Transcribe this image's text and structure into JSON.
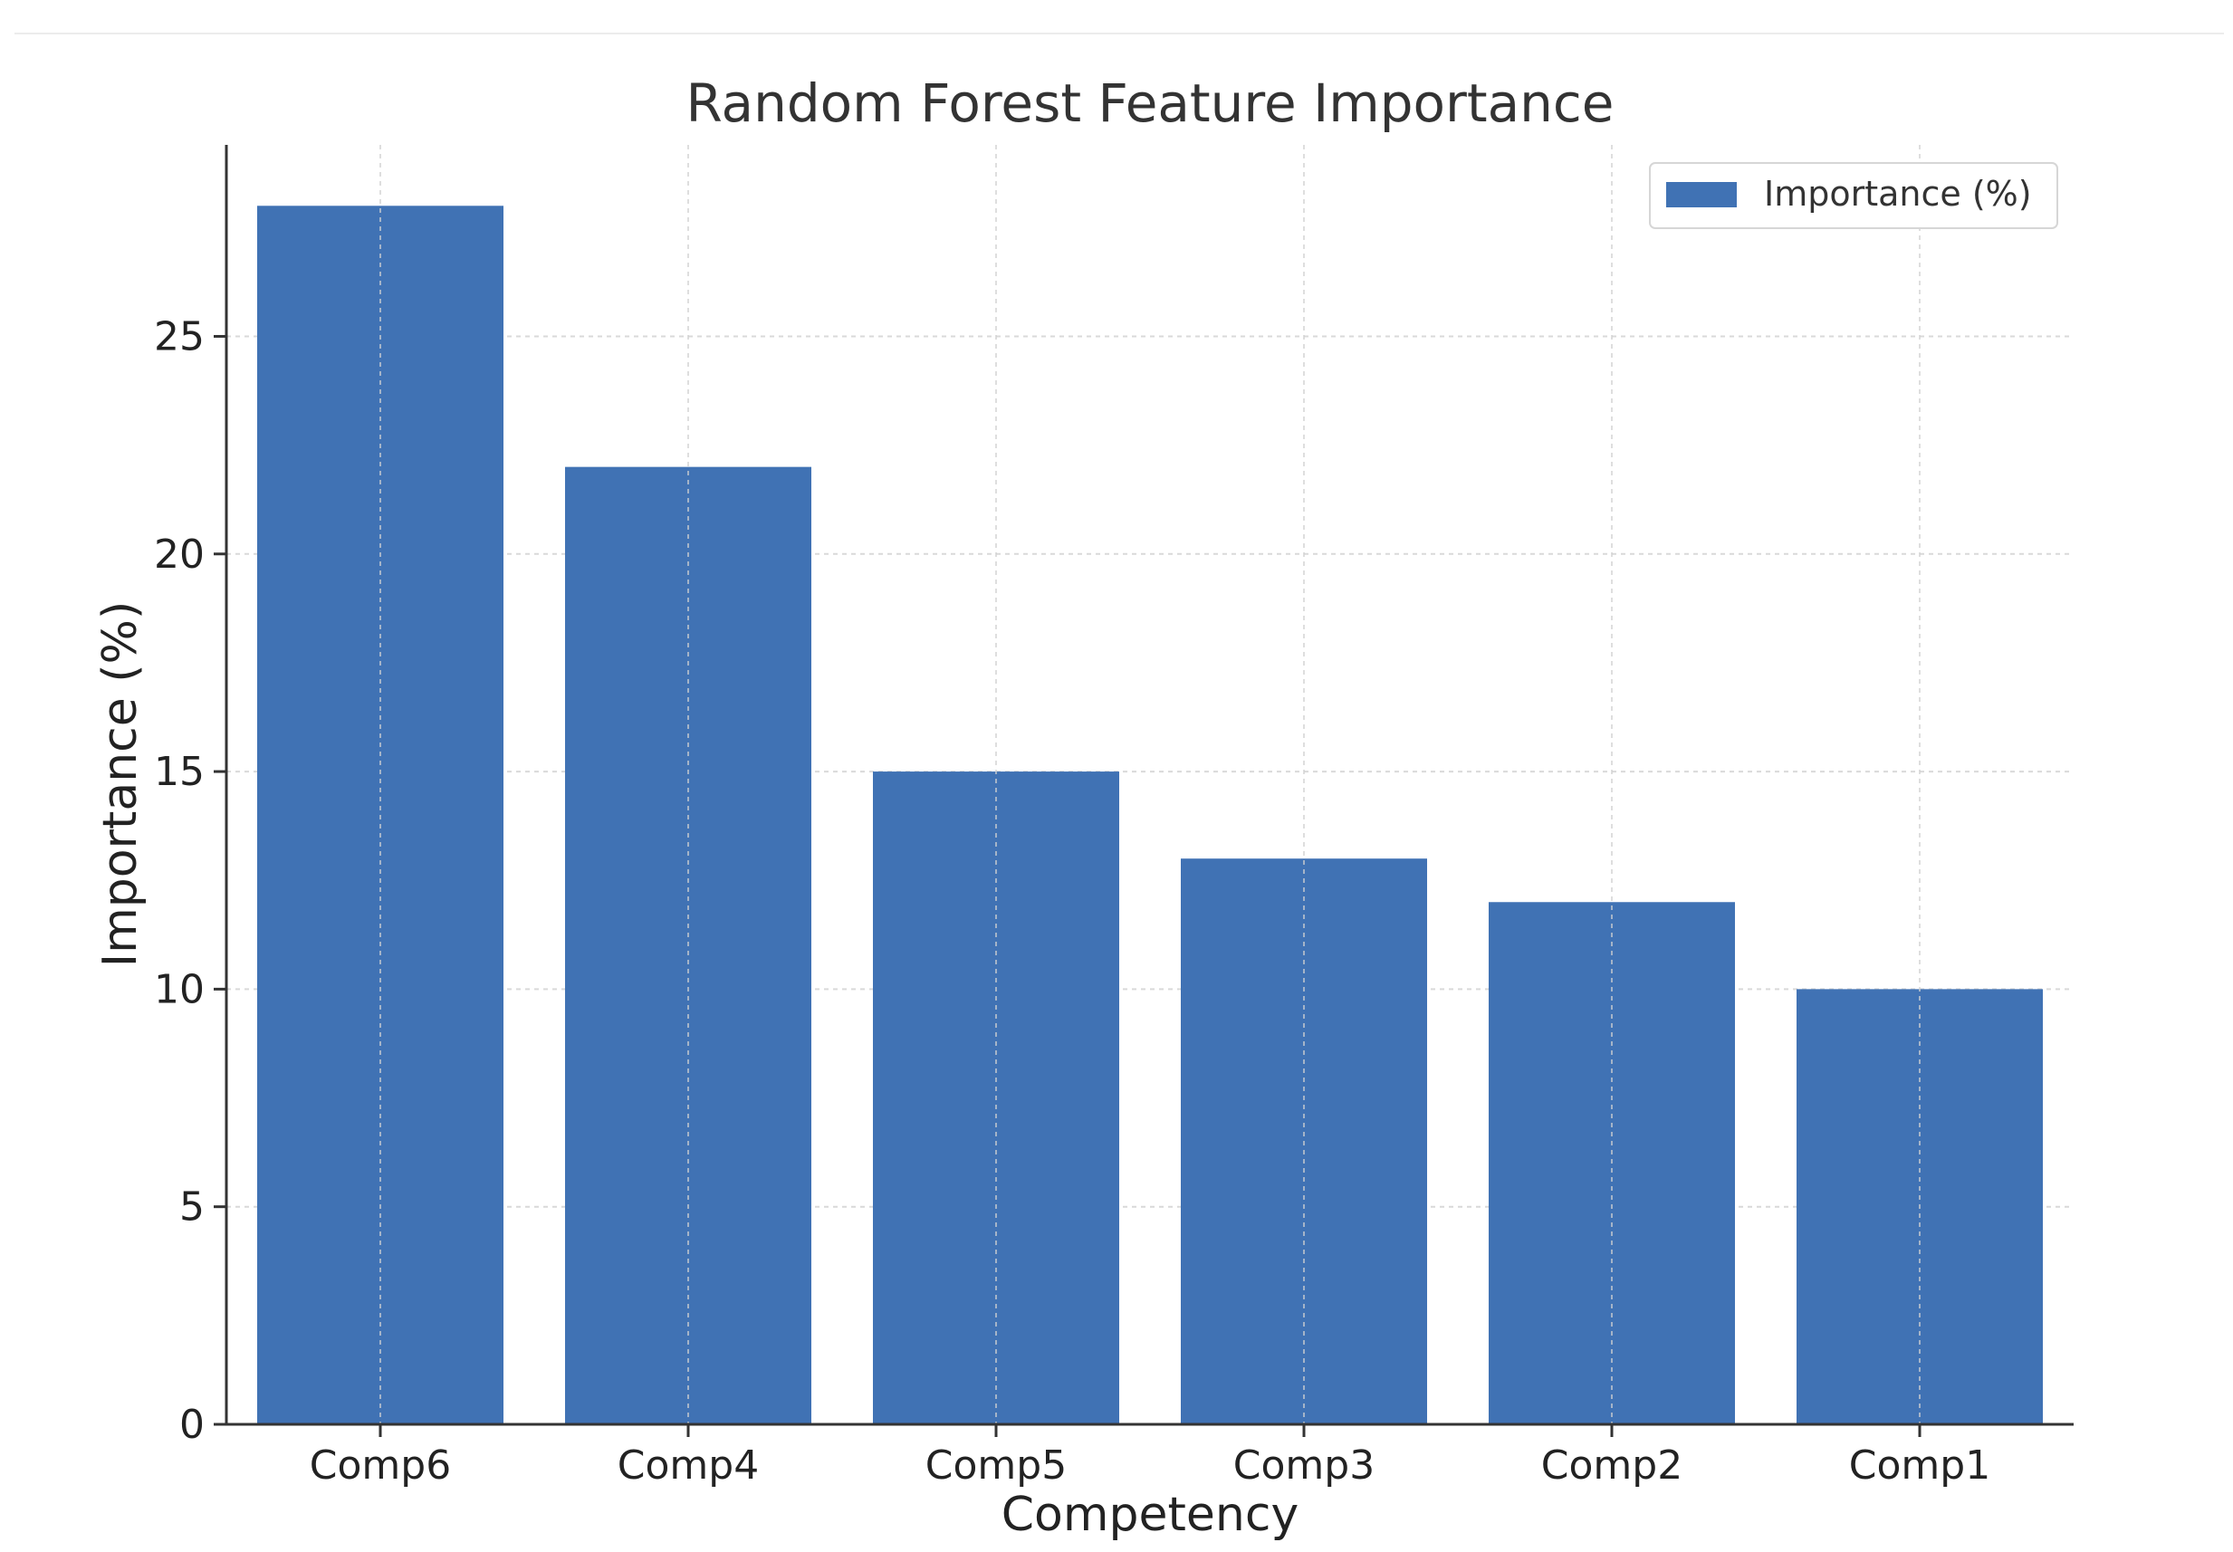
{
  "chart_data": {
    "type": "bar",
    "title": "Random Forest Feature Importance",
    "xlabel": "Competency",
    "ylabel": "Importance (%)",
    "categories": [
      "Comp6",
      "Comp4",
      "Comp5",
      "Comp3",
      "Comp2",
      "Comp1"
    ],
    "series": [
      {
        "name": "Importance (%)",
        "values": [
          28,
          22,
          15,
          13,
          12,
          10
        ],
        "color": "#4072b4"
      }
    ],
    "ylim": [
      0,
      29.4
    ],
    "yticks": [
      0,
      5,
      10,
      15,
      20,
      25
    ],
    "grid": true,
    "legend_position": "top-right"
  }
}
